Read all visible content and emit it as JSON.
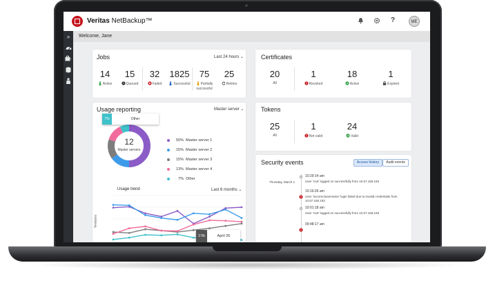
{
  "brand": {
    "strong": "Veritas",
    "name": "NetBackup™"
  },
  "topbar": {
    "avatar": "ME",
    "bell_icon": "bell-icon",
    "gear_icon": "gear-icon",
    "help_label": "?"
  },
  "welcome": "Welcome, Jane",
  "sidebar": {
    "toggle": "»"
  },
  "jobs": {
    "title": "Jobs",
    "range": "Last 24 hours",
    "stats": [
      {
        "value": "14",
        "label": "Active"
      },
      {
        "value": "15",
        "label": "Queued"
      },
      {
        "value": "32",
        "label": "Failed"
      },
      {
        "value": "1825",
        "label": "Successful"
      },
      {
        "value": "75",
        "label": "Partially successful"
      },
      {
        "value": "25",
        "label": "Retries"
      }
    ]
  },
  "certificates": {
    "title": "Certificates",
    "stats": [
      {
        "value": "20",
        "label": "All"
      },
      {
        "value": "1",
        "label": "Revoked"
      },
      {
        "value": "18",
        "label": "Active"
      },
      {
        "value": "1",
        "label": "Expired"
      }
    ]
  },
  "tokens": {
    "title": "Tokens",
    "stats": [
      {
        "value": "25",
        "label": "All"
      },
      {
        "value": "1",
        "label": "Not valid"
      },
      {
        "value": "24",
        "label": "Valid"
      }
    ]
  },
  "usage": {
    "title": "Usage reporting",
    "filter": "Master server",
    "center_value": "12",
    "center_label": "Master servers",
    "tooltip_pct": "7%",
    "tooltip_label": "Other",
    "legend": [
      {
        "pct": "50%",
        "label": "Master server 1",
        "color": "#8b5cc7"
      },
      {
        "pct": "15%",
        "label": "Master server 2",
        "color": "#3d9be9"
      },
      {
        "pct": "15%",
        "label": "Master server 3",
        "color": "#7d7d7d"
      },
      {
        "pct": "13%",
        "label": "Master server 4",
        "color": "#f06a9b"
      },
      {
        "pct": "7%",
        "label": "Other",
        "color": "#3fc1c9"
      }
    ],
    "trend_title": "Usage trend",
    "trend_range": "Last 6 months",
    "trend_ylabel": "Terabytes",
    "trend_tooltip_value": "17tb",
    "trend_tooltip_label": "April 26"
  },
  "chart_data": {
    "type": "line",
    "title": "Usage trend",
    "ylabel": "Terabytes",
    "x": [
      1,
      2,
      3,
      4,
      5,
      6,
      7,
      8,
      9
    ],
    "series": [
      {
        "name": "Master server 1",
        "color": "#8b5cc7",
        "values": [
          74,
          76,
          62,
          55,
          67,
          40,
          55,
          73,
          75
        ]
      },
      {
        "name": "Master server 2",
        "color": "#3d9be9",
        "values": [
          80,
          79,
          58,
          52,
          48,
          62,
          60,
          70,
          52
        ]
      },
      {
        "name": "Master server 3",
        "color": "#7d7d7d",
        "values": [
          22,
          20,
          28,
          25,
          22,
          26,
          30,
          35,
          40
        ]
      },
      {
        "name": "Master server 4",
        "color": "#f06a9b",
        "values": [
          18,
          30,
          34,
          25,
          24,
          38,
          47,
          46,
          44
        ]
      },
      {
        "name": "Other",
        "color": "#3fc1c9",
        "values": [
          6,
          10,
          16,
          15,
          17,
          10,
          8,
          14,
          5
        ]
      }
    ],
    "ylim": [
      0,
      100
    ]
  },
  "security": {
    "title": "Security events",
    "tabs": [
      "Access history",
      "Audit events"
    ],
    "day": "Thursday, March 1",
    "events": [
      {
        "time": "10:29:14 am",
        "text": "User 'root' logged on successfully from 10.67.166.193",
        "status": "info"
      },
      {
        "time": "10:16:26 am",
        "text": "User 'incorrectusername' login failed due to invalid credentials from 10.67.166.193",
        "status": "error"
      },
      {
        "time": "10:01:18 am",
        "text": "User 'root' logged on successfully from 10.67.166.193",
        "status": "info"
      },
      {
        "time": "09:48:17 am",
        "text": "",
        "status": "error"
      }
    ]
  },
  "colors": {
    "brand_red": "#c4151c",
    "sidebar": "#2c2f33",
    "active_tab": "#d9e8fb"
  }
}
